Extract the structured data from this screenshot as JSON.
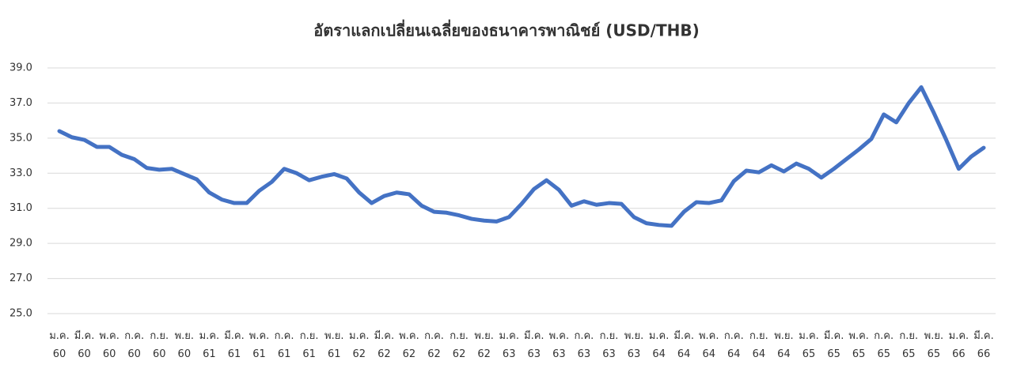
{
  "chart_data": {
    "type": "line",
    "title": "อัตราแลกเปลี่ยนเฉลี่ยของธนาคารพาณิชย์ (USD/THB)",
    "categories": [
      "ม.ค.\n60",
      null,
      "มี.ค.\n60",
      null,
      "พ.ค.\n60",
      null,
      "ก.ค.\n60",
      null,
      "ก.ย.\n60",
      null,
      "พ.ย.\n60",
      null,
      "ม.ค.\n61",
      null,
      "มี.ค.\n61",
      null,
      "พ.ค.\n61",
      null,
      "ก.ค.\n61",
      null,
      "ก.ย.\n61",
      null,
      "พ.ย.\n61",
      null,
      "ม.ค.\n62",
      null,
      "มี.ค.\n62",
      null,
      "พ.ค.\n62",
      null,
      "ก.ค.\n62",
      null,
      "ก.ย.\n62",
      null,
      "พ.ย.\n62",
      null,
      "ม.ค.\n63",
      null,
      "มี.ค.\n63",
      null,
      "พ.ค.\n63",
      null,
      "ก.ค.\n63",
      null,
      "ก.ย.\n63",
      null,
      "พ.ย.\n63",
      null,
      "ม.ค.\n64",
      null,
      "มี.ค.\n64",
      null,
      "พ.ค.\n64",
      null,
      "ก.ค.\n64",
      null,
      "ก.ย.\n64",
      null,
      "พ.ย.\n64",
      null,
      "ม.ค.\n65",
      null,
      "มี.ค.\n65",
      null,
      "พ.ค.\n65",
      null,
      "ก.ค.\n65",
      null,
      "ก.ย.\n65",
      null,
      "พ.ย.\n65",
      null,
      "ม.ค.\n66",
      null,
      "มี.ค.\n66"
    ],
    "values": [
      35.4,
      35.05,
      34.9,
      34.5,
      34.5,
      34.05,
      33.8,
      33.3,
      33.2,
      33.25,
      32.95,
      32.65,
      31.9,
      31.5,
      31.3,
      31.3,
      32.0,
      32.5,
      33.25,
      33.0,
      32.6,
      32.8,
      32.95,
      32.7,
      31.9,
      31.3,
      31.7,
      31.9,
      31.8,
      31.15,
      30.8,
      30.75,
      30.6,
      30.4,
      30.3,
      30.25,
      30.5,
      31.25,
      32.1,
      32.6,
      32.05,
      31.15,
      31.4,
      31.2,
      31.3,
      31.25,
      30.5,
      30.15,
      30.05,
      30.0,
      30.8,
      31.35,
      31.3,
      31.45,
      32.55,
      33.15,
      33.05,
      33.45,
      33.1,
      33.55,
      33.25,
      32.75,
      33.25,
      33.8,
      34.35,
      34.95,
      36.35,
      35.9,
      37.0,
      37.9,
      36.45,
      34.9,
      33.25,
      33.95,
      34.45
    ],
    "color": "#4472c4",
    "ylim": [
      25,
      39
    ],
    "yticks": [
      {
        "value": 25,
        "label": "25.0"
      },
      {
        "value": 27,
        "label": "27.0"
      },
      {
        "value": 29,
        "label": "29.0"
      },
      {
        "value": 31,
        "label": "31.0"
      },
      {
        "value": 33,
        "label": "33.0"
      },
      {
        "value": 35,
        "label": "35.0"
      },
      {
        "value": 37,
        "label": "37.0"
      },
      {
        "value": 39,
        "label": "39.0"
      }
    ],
    "grid": true
  }
}
